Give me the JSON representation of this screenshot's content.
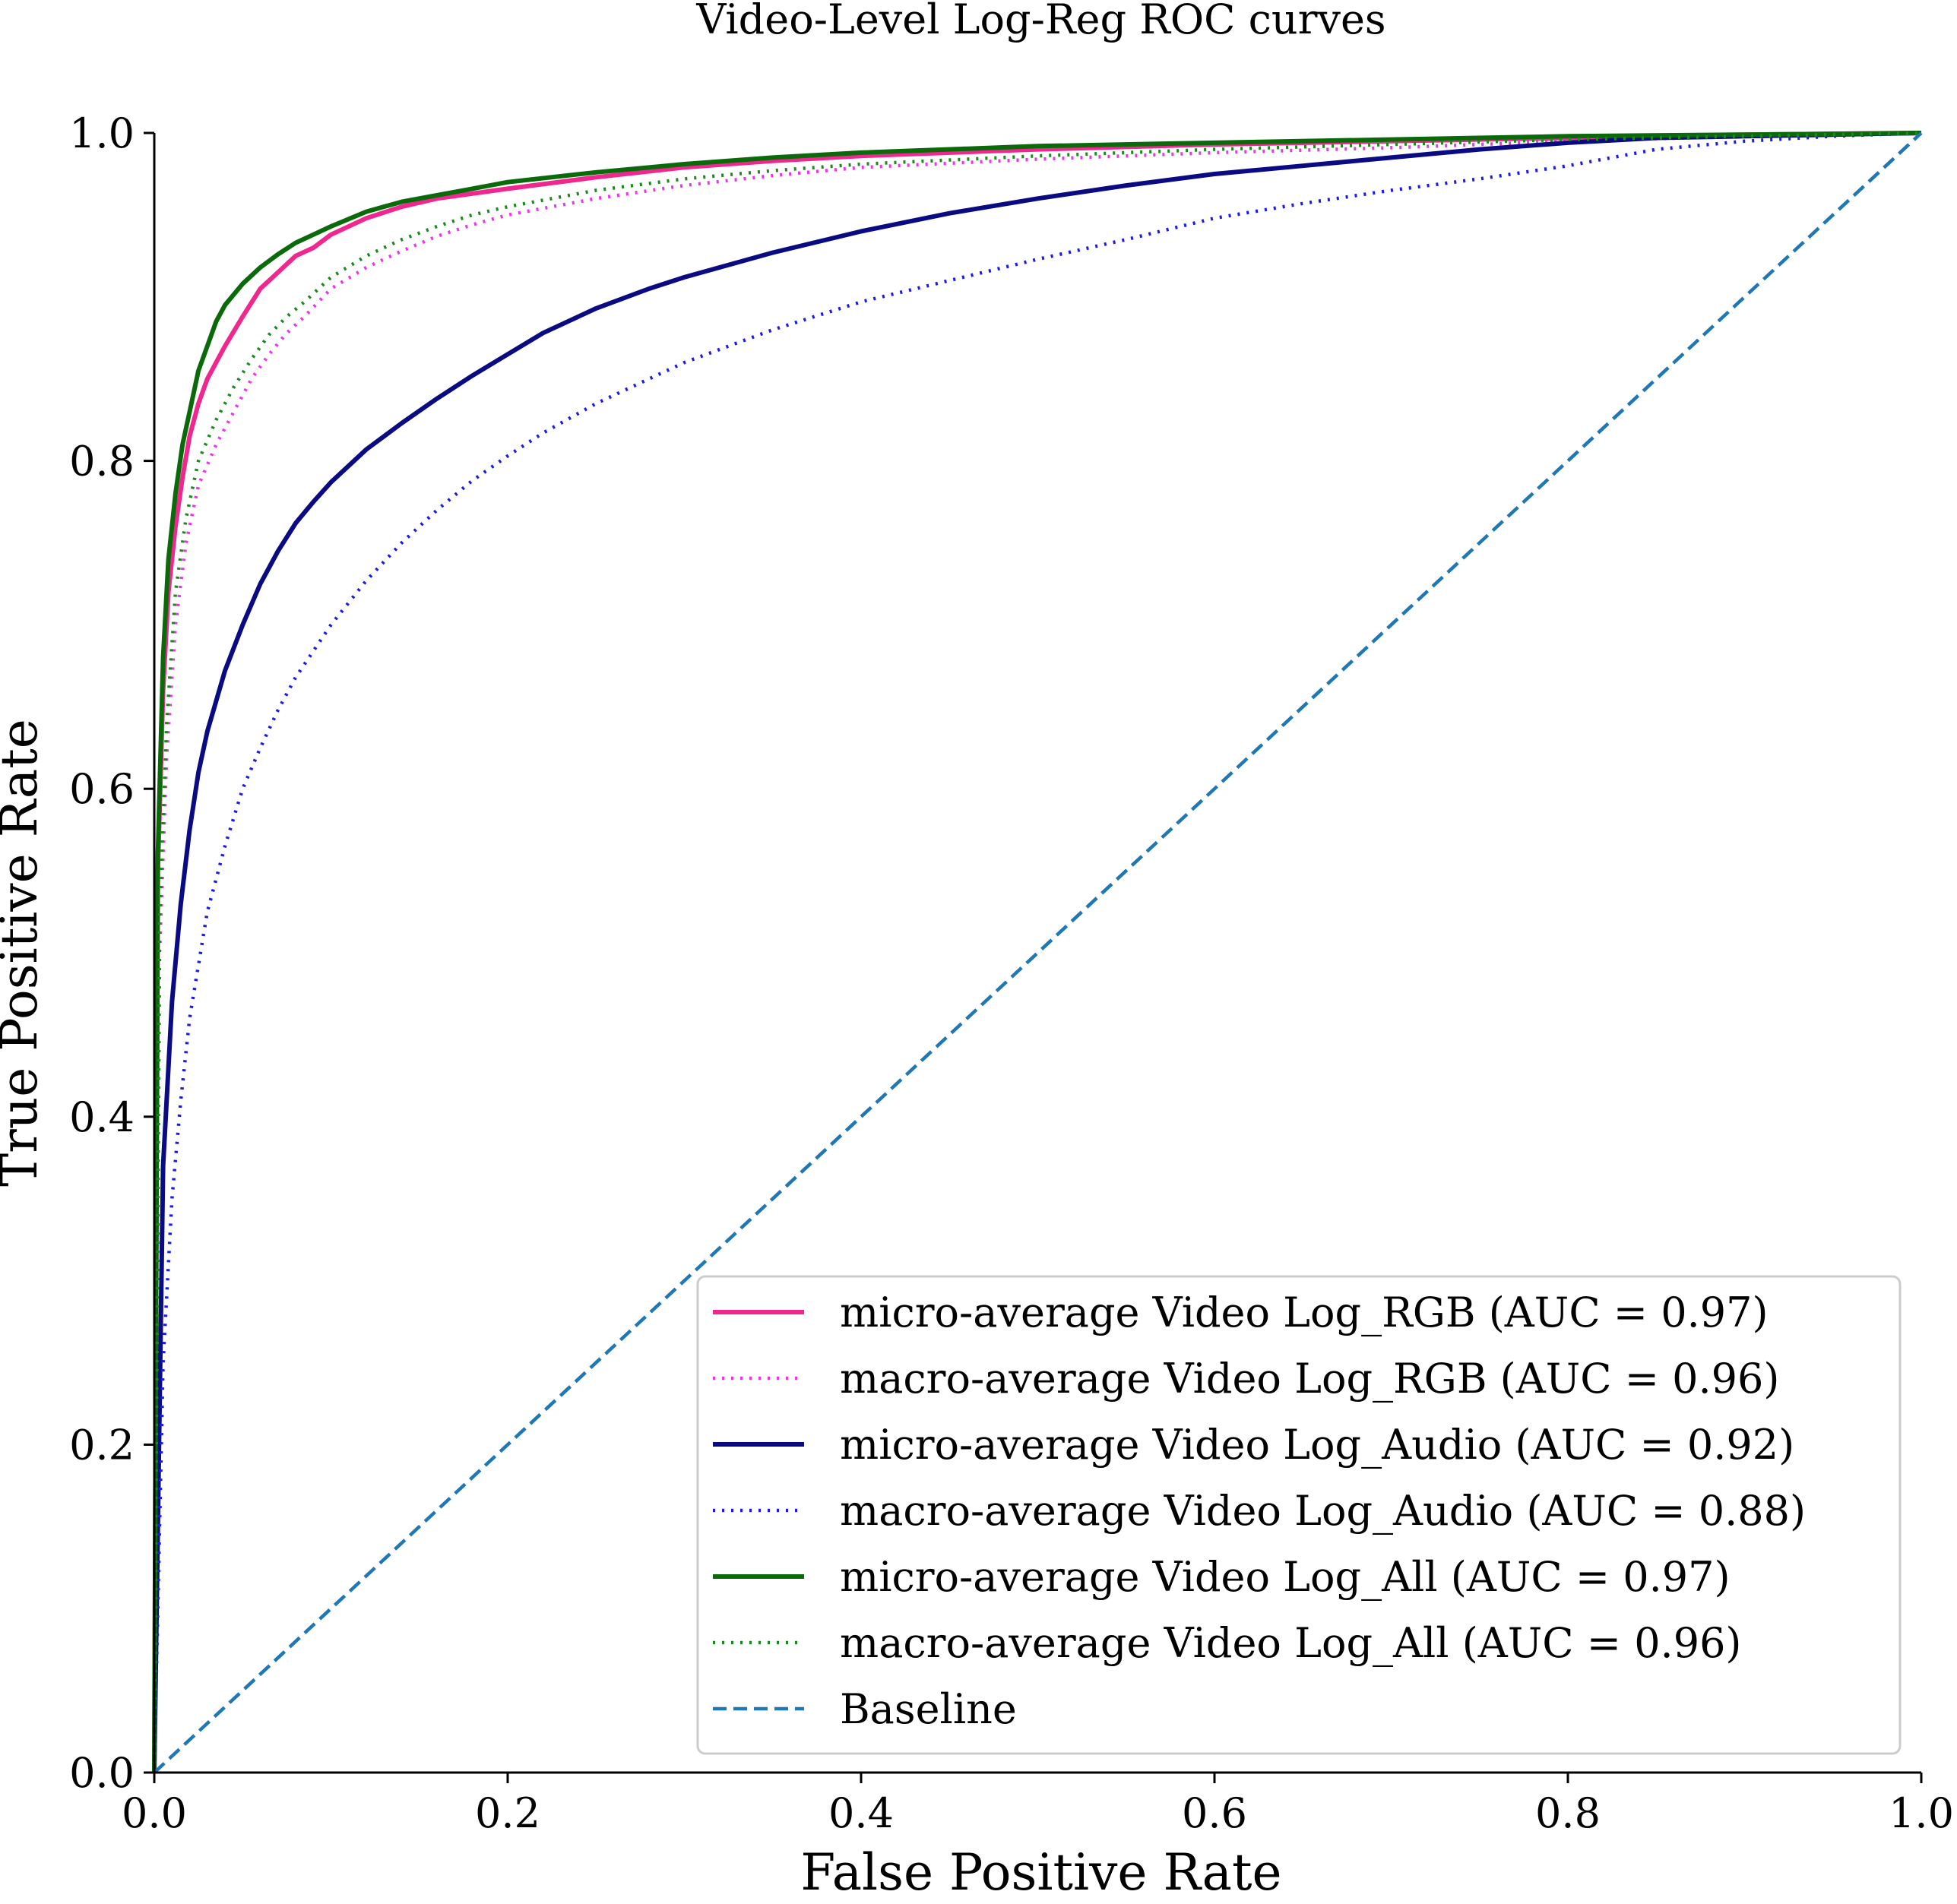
{
  "chart_data": {
    "type": "line",
    "title": "Video-Level Log-Reg ROC curves",
    "xlabel": "False Positive Rate",
    "ylabel": "True Positive Rate",
    "xlim": [
      0.0,
      1.0
    ],
    "ylim": [
      0.0,
      1.0
    ],
    "xticks": [
      "0.0",
      "0.2",
      "0.4",
      "0.6",
      "0.8",
      "1.0"
    ],
    "yticks": [
      "0.0",
      "0.2",
      "0.4",
      "0.6",
      "0.8",
      "1.0"
    ],
    "grid": false,
    "legend_position": "lower-right",
    "series": [
      {
        "name": "micro-average Video Log_RGB (AUC = 0.97)",
        "color": "#f0278f",
        "style": "solid",
        "x": [
          0,
          0.002,
          0.005,
          0.008,
          0.012,
          0.016,
          0.02,
          0.025,
          0.03,
          0.035,
          0.04,
          0.05,
          0.06,
          0.07,
          0.08,
          0.09,
          0.1,
          0.12,
          0.14,
          0.16,
          0.18,
          0.2,
          0.25,
          0.3,
          0.35,
          0.4,
          0.5,
          0.6,
          0.7,
          0.8,
          0.9,
          1.0
        ],
        "y": [
          0,
          0.55,
          0.66,
          0.72,
          0.76,
          0.79,
          0.815,
          0.835,
          0.85,
          0.86,
          0.87,
          0.888,
          0.905,
          0.915,
          0.925,
          0.93,
          0.938,
          0.948,
          0.955,
          0.96,
          0.963,
          0.966,
          0.973,
          0.979,
          0.983,
          0.986,
          0.99,
          0.993,
          0.995,
          0.997,
          0.999,
          1.0
        ]
      },
      {
        "name": "macro-average Video Log_RGB (AUC = 0.96)",
        "color": "#ee33ee",
        "style": "dotted",
        "x": [
          0,
          0.003,
          0.007,
          0.012,
          0.018,
          0.025,
          0.035,
          0.045,
          0.055,
          0.065,
          0.075,
          0.085,
          0.1,
          0.12,
          0.14,
          0.16,
          0.18,
          0.2,
          0.25,
          0.3,
          0.35,
          0.4,
          0.5,
          0.6,
          0.7,
          0.8,
          0.9,
          1.0
        ],
        "y": [
          0,
          0.5,
          0.62,
          0.7,
          0.75,
          0.785,
          0.81,
          0.83,
          0.85,
          0.865,
          0.878,
          0.888,
          0.905,
          0.918,
          0.928,
          0.937,
          0.944,
          0.95,
          0.96,
          0.968,
          0.974,
          0.979,
          0.984,
          0.988,
          0.991,
          0.995,
          0.998,
          1.0
        ]
      },
      {
        "name": "micro-average Video Log_Audio (AUC = 0.92)",
        "color": "#0a0a82",
        "style": "solid",
        "x": [
          0,
          0.005,
          0.01,
          0.015,
          0.02,
          0.025,
          0.03,
          0.04,
          0.05,
          0.06,
          0.07,
          0.08,
          0.09,
          0.1,
          0.12,
          0.14,
          0.16,
          0.18,
          0.2,
          0.22,
          0.25,
          0.28,
          0.3,
          0.35,
          0.4,
          0.45,
          0.5,
          0.55,
          0.6,
          0.65,
          0.7,
          0.75,
          0.8,
          0.85,
          0.9,
          0.95,
          1.0
        ],
        "y": [
          0,
          0.37,
          0.47,
          0.53,
          0.575,
          0.61,
          0.635,
          0.672,
          0.7,
          0.725,
          0.745,
          0.762,
          0.775,
          0.787,
          0.807,
          0.823,
          0.838,
          0.852,
          0.865,
          0.878,
          0.893,
          0.905,
          0.912,
          0.927,
          0.94,
          0.951,
          0.96,
          0.968,
          0.975,
          0.98,
          0.985,
          0.99,
          0.994,
          0.997,
          0.998,
          0.999,
          1.0
        ]
      },
      {
        "name": "macro-average Video Log_Audio (AUC = 0.88)",
        "color": "#1a1aee",
        "style": "dotted",
        "x": [
          0,
          0.005,
          0.01,
          0.015,
          0.02,
          0.03,
          0.04,
          0.05,
          0.06,
          0.07,
          0.08,
          0.1,
          0.12,
          0.14,
          0.16,
          0.18,
          0.2,
          0.22,
          0.25,
          0.28,
          0.3,
          0.35,
          0.4,
          0.45,
          0.5,
          0.55,
          0.6,
          0.65,
          0.7,
          0.75,
          0.8,
          0.85,
          0.9,
          0.95,
          1.0
        ],
        "y": [
          0,
          0.25,
          0.35,
          0.41,
          0.46,
          0.525,
          0.565,
          0.6,
          0.625,
          0.648,
          0.668,
          0.7,
          0.727,
          0.75,
          0.77,
          0.788,
          0.803,
          0.817,
          0.835,
          0.85,
          0.86,
          0.88,
          0.897,
          0.91,
          0.923,
          0.935,
          0.948,
          0.957,
          0.965,
          0.972,
          0.98,
          0.99,
          0.995,
          0.998,
          1.0
        ]
      },
      {
        "name": "micro-average Video Log_All (AUC = 0.97)",
        "color": "#0a6a0a",
        "style": "solid",
        "x": [
          0,
          0.002,
          0.005,
          0.008,
          0.012,
          0.016,
          0.02,
          0.025,
          0.03,
          0.035,
          0.04,
          0.05,
          0.06,
          0.07,
          0.08,
          0.09,
          0.1,
          0.12,
          0.14,
          0.16,
          0.18,
          0.2,
          0.25,
          0.3,
          0.35,
          0.4,
          0.5,
          0.6,
          0.7,
          0.8,
          0.9,
          1.0
        ],
        "y": [
          0,
          0.56,
          0.68,
          0.74,
          0.78,
          0.81,
          0.83,
          0.855,
          0.87,
          0.885,
          0.895,
          0.908,
          0.918,
          0.926,
          0.933,
          0.938,
          0.943,
          0.952,
          0.958,
          0.962,
          0.966,
          0.97,
          0.976,
          0.981,
          0.985,
          0.988,
          0.992,
          0.994,
          0.996,
          0.998,
          0.999,
          1.0
        ]
      },
      {
        "name": "macro-average Video Log_All (AUC = 0.96)",
        "color": "#1a8a1a",
        "style": "dotted",
        "x": [
          0,
          0.003,
          0.007,
          0.012,
          0.018,
          0.025,
          0.035,
          0.045,
          0.055,
          0.065,
          0.075,
          0.085,
          0.1,
          0.12,
          0.14,
          0.16,
          0.18,
          0.2,
          0.25,
          0.3,
          0.35,
          0.4,
          0.5,
          0.6,
          0.7,
          0.8,
          0.9,
          1.0
        ],
        "y": [
          0,
          0.52,
          0.64,
          0.72,
          0.765,
          0.8,
          0.825,
          0.845,
          0.862,
          0.877,
          0.888,
          0.897,
          0.912,
          0.925,
          0.935,
          0.943,
          0.95,
          0.955,
          0.965,
          0.972,
          0.977,
          0.981,
          0.986,
          0.99,
          0.993,
          0.996,
          0.998,
          1.0
        ]
      },
      {
        "name": "Baseline",
        "color": "#1f77b4",
        "style": "dashed",
        "x": [
          0,
          1
        ],
        "y": [
          0,
          1
        ]
      }
    ]
  }
}
